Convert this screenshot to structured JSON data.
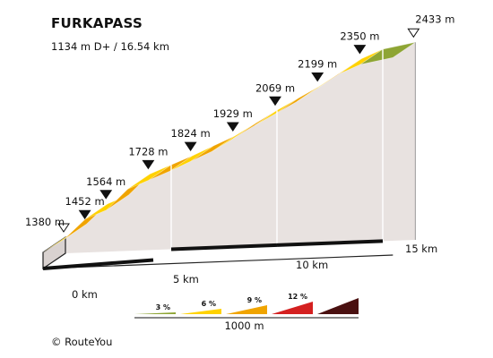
{
  "header": {
    "title": "FURKAPASS",
    "subtitle": "1134 m D+ / 16.54 km"
  },
  "footer": {
    "credit": "© RouteYou"
  },
  "colors": {
    "face_light": "#ffd200",
    "face_dark": "#f0a400",
    "wall": "#e8e2e0",
    "top_green": "#8ea534"
  },
  "chart_data": {
    "type": "area",
    "title": "FURKAPASS",
    "subtitle": "1134 m D+ / 16.54 km",
    "x_unit": "km",
    "y_unit": "m",
    "points": [
      {
        "km": 0,
        "alt": 1380,
        "label": "1380 m",
        "marker": "start"
      },
      {
        "km": 1,
        "alt": 1452,
        "label": "1452 m",
        "marker": "filled"
      },
      {
        "km": 2,
        "alt": 1564,
        "label": "1564 m",
        "marker": "filled"
      },
      {
        "km": 3,
        "alt": 1612
      },
      {
        "km": 4,
        "alt": 1728,
        "label": "1728 m",
        "marker": "filled"
      },
      {
        "km": 5,
        "alt": 1776
      },
      {
        "km": 6,
        "alt": 1824,
        "label": "1824 m",
        "marker": "filled"
      },
      {
        "km": 7,
        "alt": 1877
      },
      {
        "km": 8,
        "alt": 1929,
        "label": "1929 m",
        "marker": "filled"
      },
      {
        "km": 9,
        "alt": 1999
      },
      {
        "km": 10,
        "alt": 2069,
        "label": "2069 m",
        "marker": "filled"
      },
      {
        "km": 11,
        "alt": 2134
      },
      {
        "km": 12,
        "alt": 2199,
        "label": "2199 m",
        "marker": "filled"
      },
      {
        "km": 13,
        "alt": 2274
      },
      {
        "km": 14,
        "alt": 2350,
        "label": "2350 m",
        "marker": "filled"
      },
      {
        "km": 15,
        "alt": 2400
      },
      {
        "km": 16.54,
        "alt": 2433,
        "label": "2433 m",
        "marker": "end"
      }
    ],
    "x_ticks": [
      {
        "km": 0,
        "label": "0 km"
      },
      {
        "km": 5,
        "label": "5 km"
      },
      {
        "km": 10,
        "label": "10 km"
      },
      {
        "km": 15,
        "label": "15 km"
      }
    ],
    "segment_gradients_pct": [
      7,
      11,
      5,
      12,
      5,
      5,
      5,
      5,
      7,
      7,
      7,
      7,
      8,
      8,
      5,
      2
    ],
    "legend": {
      "items": [
        {
          "label": "3 %",
          "color": "#8ea534"
        },
        {
          "label": "6 %",
          "color": "#ffd200"
        },
        {
          "label": "9 %",
          "color": "#f0a400"
        },
        {
          "label": "12 %",
          "color": "#d42020"
        },
        {
          "label": "",
          "color": "#4a1010"
        }
      ],
      "scale_label": "1000 m"
    }
  }
}
